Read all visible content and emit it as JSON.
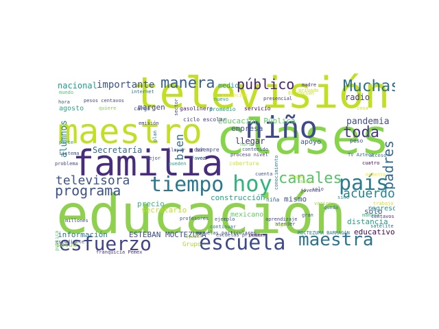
{
  "wordcloud": {
    "words": [
      {
        "text": "educación",
        "color": "#8fd14f"
      },
      {
        "text": "televisión",
        "color": "#c2df23"
      },
      {
        "text": "clases",
        "color": "#86d549"
      },
      {
        "text": "maestro",
        "color": "#c2df23"
      },
      {
        "text": "familia",
        "color": "#472d7b"
      },
      {
        "text": "niño",
        "color": "#3e4a89"
      },
      {
        "text": "tiempo",
        "color": "#2a788e"
      },
      {
        "text": "escuela",
        "color": "#3e4989"
      },
      {
        "text": "maestra",
        "color": "#2c738e"
      },
      {
        "text": "esfuerzo",
        "color": "#414487"
      },
      {
        "text": "país",
        "color": "#2a7b8e"
      },
      {
        "text": "hoy",
        "color": "#2fb47c"
      },
      {
        "text": "canales",
        "color": "#54c568"
      },
      {
        "text": "Muchas",
        "color": "#2c728e"
      },
      {
        "text": "manera",
        "color": "#355f8d"
      },
      {
        "text": "público",
        "color": "#482173"
      },
      {
        "text": "toda",
        "color": "#453882"
      },
      {
        "text": "padres",
        "color": "#31688e"
      },
      {
        "text": "programa",
        "color": "#3b528b"
      },
      {
        "text": "televisora",
        "color": "#3a548c"
      },
      {
        "text": "acuerdo",
        "color": "#26828e"
      },
      {
        "text": "importante",
        "color": "#3b518b"
      },
      {
        "text": "pandemia",
        "color": "#3e4c8a"
      },
      {
        "text": "Secretaría",
        "color": "#31688e"
      },
      {
        "text": "nacional",
        "color": "#1f9a8a"
      },
      {
        "text": "alumnos",
        "color": "#25858e"
      },
      {
        "text": "bien",
        "color": "#2d708e"
      },
      {
        "text": "radio",
        "color": "#443a83"
      },
      {
        "text": "Educación Pública",
        "color": "#5ec962"
      },
      {
        "text": "secretario",
        "color": "#bddf26"
      },
      {
        "text": "construcción",
        "color": "#21a685"
      },
      {
        "text": "mismo",
        "color": "#3d4d8a"
      },
      {
        "text": "regreso",
        "color": "#20928c"
      },
      {
        "text": "distancia",
        "color": "#1fa088"
      },
      {
        "text": "sólo",
        "color": "#3b528b"
      },
      {
        "text": "educativo",
        "color": "#440154"
      },
      {
        "text": "información",
        "color": "#2a788e"
      },
      {
        "text": "ESTEBAN MOCTEZUMA",
        "color": "#3e4989"
      },
      {
        "text": "empresa",
        "color": "#3b528b"
      },
      {
        "text": "llegar",
        "color": "#472c7a"
      },
      {
        "text": "apoyo",
        "color": "#3b528b"
      },
      {
        "text": "margen",
        "color": "#414487"
      },
      {
        "text": "precio",
        "color": "#35b779"
      },
      {
        "text": "salud",
        "color": "#8fd744"
      },
      {
        "text": "Grupo",
        "color": "#addc30"
      },
      {
        "text": "agosto",
        "color": "#22a884"
      },
      {
        "text": "medio",
        "color": "#21918c"
      },
      {
        "text": "mexicano",
        "color": "#5ec962"
      },
      {
        "text": "cargo",
        "color": "#3b528b"
      },
      {
        "text": "ciclo escolar",
        "color": "#46337f"
      },
      {
        "text": "gasolinera",
        "color": "#482475"
      },
      {
        "text": "promedio",
        "color": "#1fa187"
      },
      {
        "text": "servicio",
        "color": "#440154"
      },
      {
        "text": "presencial",
        "color": "#46327e"
      },
      {
        "text": "nuevo",
        "color": "#1e9c89"
      },
      {
        "text": "Educación",
        "color": "#c8e020"
      },
      {
        "text": "madre",
        "color": "#482878"
      },
      {
        "text": "privado",
        "color": "#c8e020"
      },
      {
        "text": "mundo",
        "color": "#52c569"
      },
      {
        "text": "hora",
        "color": "#3b528b"
      },
      {
        "text": "pesos centavos",
        "color": "#414487"
      },
      {
        "text": "internet",
        "color": "#2c728e"
      },
      {
        "text": "quiere",
        "color": "#7ad151"
      },
      {
        "text": "cosa",
        "color": "#d2e21b"
      },
      {
        "text": "plan",
        "color": "#2a788e"
      },
      {
        "text": "emisión",
        "color": "#46337f"
      },
      {
        "text": "dar",
        "color": "#453882"
      },
      {
        "text": "vez",
        "color": "#3e4989"
      },
      {
        "text": "siempre",
        "color": "#3b528b"
      },
      {
        "text": "llevar",
        "color": "#3e4a89"
      },
      {
        "text": "pueden",
        "color": "#22a884"
      },
      {
        "text": "mejor",
        "color": "#3e4989"
      },
      {
        "text": "favor",
        "color": "#2e6f8e"
      },
      {
        "text": "cobertura",
        "color": "#d2e21b"
      },
      {
        "text": "contenido",
        "color": "#3b528b"
      },
      {
        "text": "proceso nivel",
        "color": "#443983"
      },
      {
        "text": "horario",
        "color": "#5ec962"
      },
      {
        "text": "conocimiento",
        "color": "#2a788e"
      },
      {
        "text": "cuenta",
        "color": "#3b528b"
      },
      {
        "text": "jóvenes",
        "color": "#453781"
      },
      {
        "text": "peso",
        "color": "#3e4989"
      },
      {
        "text": "TV Azteca",
        "color": "#31688e"
      },
      {
        "text": "cuatro",
        "color": "#440154"
      },
      {
        "text": "acceso",
        "color": "#2c728e"
      },
      {
        "text": "momento",
        "color": "#fde725"
      },
      {
        "text": "problema",
        "color": "#3e4989"
      },
      {
        "text": "sistema",
        "color": "#3b528b"
      },
      {
        "text": "parte",
        "color": "#20928c"
      },
      {
        "text": "escuelas particulares",
        "color": "#3e4989"
      },
      {
        "text": "profesores",
        "color": "#3b528b"
      },
      {
        "text": "estudiante",
        "color": "#3e4989"
      },
      {
        "text": "franquicia Pemex",
        "color": "#46327e"
      },
      {
        "text": "ayudar",
        "color": "#a5db36"
      },
      {
        "text": "escuelas privadas",
        "color": "#3e4989"
      },
      {
        "text": "poder",
        "color": "#472d7b"
      },
      {
        "text": "MOCTEZUMA BARRAGÁN",
        "color": "#2a788e"
      },
      {
        "text": "niña",
        "color": "#31688e"
      },
      {
        "text": "aprendizaje",
        "color": "#414487"
      },
      {
        "text": "atender",
        "color": "#3e4989"
      },
      {
        "text": "ejemplo",
        "color": "#3b528b"
      },
      {
        "text": "continuar",
        "color": "#2c728e"
      },
      {
        "text": "millones",
        "color": "#3e4a89"
      },
      {
        "text": "pública",
        "color": "#5ec962"
      },
      {
        "text": "mañana",
        "color": "#35b779"
      },
      {
        "text": "centavos",
        "color": "#472d7b"
      },
      {
        "text": "satélite",
        "color": "#2c728e"
      },
      {
        "text": "trabajo",
        "color": "#d5e21a"
      },
      {
        "text": "sino",
        "color": "#21918c"
      },
      {
        "text": "gran",
        "color": "#3b528b"
      },
      {
        "text": "queda",
        "color": "#2c728e"
      },
      {
        "text": "varios",
        "color": "#a2da37"
      },
      {
        "text": "hogar",
        "color": "#bddf26"
      },
      {
        "text": "situación",
        "color": "#fde725"
      },
      {
        "text": "sector",
        "color": "#3e4a89"
      },
      {
        "text": "ahora",
        "color": "#a0da39"
      },
      {
        "text": "solo",
        "color": "#3e4989"
      },
      {
        "text": "lugar",
        "color": "#addc30"
      }
    ]
  }
}
